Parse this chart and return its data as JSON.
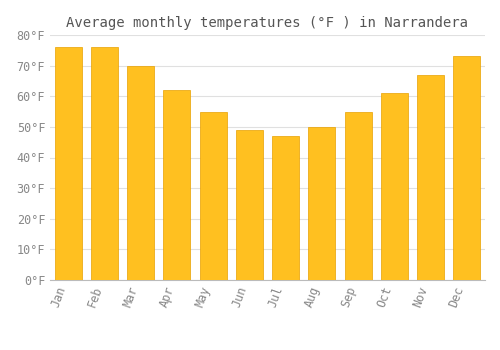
{
  "title": "Average monthly temperatures (°F ) in Narrandera",
  "months": [
    "Jan",
    "Feb",
    "Mar",
    "Apr",
    "May",
    "Jun",
    "Jul",
    "Aug",
    "Sep",
    "Oct",
    "Nov",
    "Dec"
  ],
  "values": [
    76,
    76,
    70,
    62,
    55,
    49,
    47,
    50,
    55,
    61,
    67,
    73
  ],
  "bar_color_face": "#FFC020",
  "bar_color_edge": "#E8A000",
  "ylim": [
    0,
    80
  ],
  "yticks": [
    0,
    10,
    20,
    30,
    40,
    50,
    60,
    70,
    80
  ],
  "ytick_labels": [
    "0°F",
    "10°F",
    "20°F",
    "30°F",
    "40°F",
    "50°F",
    "60°F",
    "70°F",
    "80°F"
  ],
  "background_color": "#FFFFFF",
  "plot_bg_color": "#FFFFFF",
  "grid_color": "#E0E0E0",
  "title_fontsize": 10,
  "tick_fontsize": 8.5,
  "tick_color": "#888888",
  "bar_width": 0.75,
  "title_color": "#555555"
}
